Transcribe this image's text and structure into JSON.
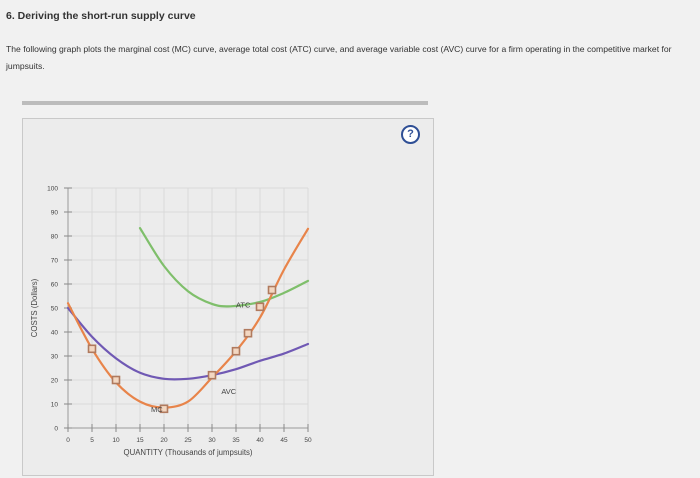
{
  "heading": "6. Deriving the short-run supply curve",
  "intro": "The following graph plots the marginal cost (MC) curve, average total cost (ATC) curve, and average variable cost (AVC) curve for a firm operating in the competitive market for jumpsuits.",
  "help_label": "?",
  "chart_data": {
    "type": "line",
    "title": "",
    "xlabel": "QUANTITY (Thousands of jumpsuits)",
    "ylabel": "COSTS (Dollars)",
    "xlim": [
      0,
      50
    ],
    "ylim": [
      0,
      100
    ],
    "xticks": [
      0,
      5,
      10,
      15,
      20,
      25,
      30,
      35,
      40,
      45,
      50
    ],
    "yticks": [
      0,
      10,
      20,
      30,
      40,
      50,
      60,
      70,
      80,
      90,
      100
    ],
    "grid": true,
    "colors": {
      "MC": "#e8844a",
      "ATC": "#7fbf6b",
      "AVC": "#7059b4",
      "marker": "#b07a5e"
    },
    "series": [
      {
        "name": "MC",
        "x": [
          0,
          5,
          10,
          15,
          20,
          25,
          30,
          35,
          40,
          45,
          50
        ],
        "y": [
          52,
          33,
          19,
          11,
          8.5,
          11,
          21,
          32,
          46,
          66,
          83
        ]
      },
      {
        "name": "ATC",
        "x": [
          15,
          20,
          25,
          30,
          33.9,
          40,
          45,
          50
        ],
        "y": [
          83.3,
          67.5,
          57.0,
          51.7,
          50.7,
          52.5,
          56.3,
          61.3
        ]
      },
      {
        "name": "AVC",
        "x": [
          0,
          5,
          10,
          15,
          20,
          25,
          30,
          35,
          40,
          45,
          50
        ],
        "y": [
          50,
          38,
          29,
          23,
          20.5,
          20.5,
          22,
          24.5,
          28,
          31,
          35
        ]
      }
    ],
    "mc_points": {
      "x": [
        5,
        10,
        20,
        30,
        35,
        37.5,
        40,
        42.5
      ],
      "y": [
        33,
        20,
        8,
        22,
        32,
        39.5,
        50.5,
        57.5
      ]
    },
    "annotations": [
      {
        "text": "MC",
        "x": 18.5,
        "y": 8
      },
      {
        "text": "ATC",
        "x": 36.5,
        "y": 51.5
      },
      {
        "text": "AVC",
        "x": 33.5,
        "y": 15.5
      }
    ]
  }
}
